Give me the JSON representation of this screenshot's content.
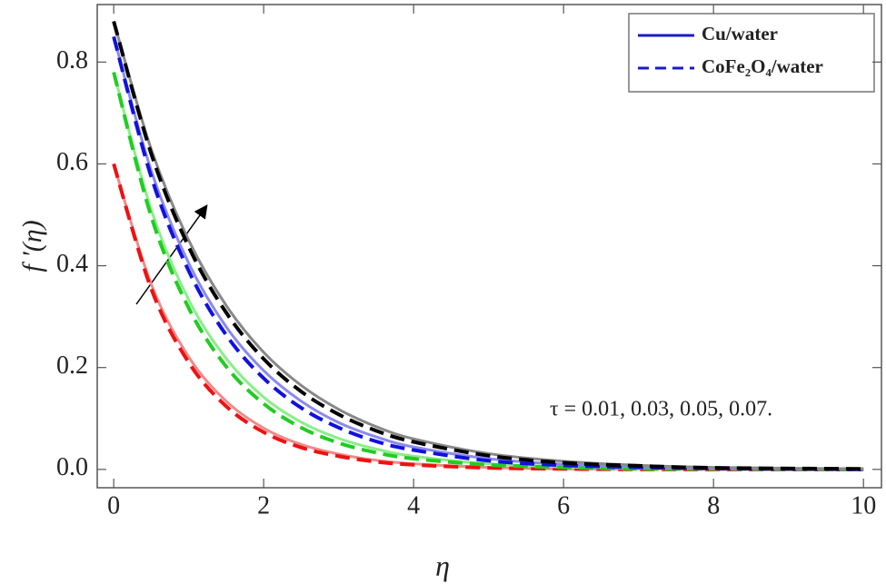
{
  "chart_data": {
    "type": "line",
    "x_label": "η",
    "y_label": "f ′(η)",
    "annotation": "τ  = 0.01, 0.03, 0.05, 0.07.",
    "x": [
      0,
      0.5,
      1,
      1.5,
      2,
      2.5,
      3,
      3.5,
      4,
      5,
      6,
      7,
      8,
      10
    ],
    "series": [
      {
        "name": "Cu/water",
        "color": "#f08a8a",
        "dashed": false,
        "values": [
          0.6,
          0.364,
          0.221,
          0.134,
          0.081,
          0.049,
          0.03,
          0.018,
          0.011,
          0.004,
          0.001,
          0.001,
          0.0,
          0.0
        ]
      },
      {
        "name": "CoFe₂O₄/water",
        "color": "#ee1111",
        "dashed": true,
        "values": [
          0.6,
          0.355,
          0.21,
          0.124,
          0.073,
          0.043,
          0.026,
          0.015,
          0.009,
          0.003,
          0.001,
          0.0,
          0.0,
          0.0
        ]
      },
      {
        "name": "Cu/water",
        "color": "#8aee8a",
        "dashed": false,
        "values": [
          0.78,
          0.51,
          0.333,
          0.218,
          0.142,
          0.093,
          0.061,
          0.04,
          0.026,
          0.011,
          0.005,
          0.002,
          0.001,
          0.0
        ]
      },
      {
        "name": "CoFe₂O₄/water",
        "color": "#22cc22",
        "dashed": true,
        "values": [
          0.78,
          0.497,
          0.317,
          0.202,
          0.129,
          0.082,
          0.052,
          0.033,
          0.021,
          0.009,
          0.004,
          0.001,
          0.001,
          0.0
        ]
      },
      {
        "name": "Cu/water",
        "color": "#8a8aee",
        "dashed": false,
        "values": [
          0.85,
          0.587,
          0.405,
          0.28,
          0.194,
          0.134,
          0.092,
          0.064,
          0.044,
          0.021,
          0.01,
          0.005,
          0.002,
          0.001
        ]
      },
      {
        "name": "CoFe₂O₄/water",
        "color": "#1111dd",
        "dashed": true,
        "values": [
          0.85,
          0.575,
          0.39,
          0.264,
          0.179,
          0.121,
          0.082,
          0.055,
          0.038,
          0.017,
          0.008,
          0.004,
          0.002,
          0.0
        ]
      },
      {
        "name": "Cu/water",
        "color": "#888888",
        "dashed": false,
        "values": [
          0.88,
          0.629,
          0.45,
          0.322,
          0.23,
          0.165,
          0.118,
          0.084,
          0.06,
          0.031,
          0.016,
          0.008,
          0.004,
          0.001
        ]
      },
      {
        "name": "CoFe₂O₄/water",
        "color": "#000000",
        "dashed": true,
        "values": [
          0.88,
          0.62,
          0.437,
          0.308,
          0.217,
          0.153,
          0.108,
          0.076,
          0.054,
          0.027,
          0.013,
          0.007,
          0.003,
          0.001
        ]
      }
    ],
    "legend": "upper right",
    "legend_color": "#1a1acc",
    "xlim": [
      -0.22,
      10.24
    ],
    "ylim": [
      -0.036,
      0.913
    ],
    "xticks": [
      0,
      2,
      4,
      6,
      8,
      10
    ],
    "yticks": [
      {
        "value": 0,
        "label": "0.0"
      },
      {
        "value": 0.2,
        "label": "0.2"
      },
      {
        "value": 0.4,
        "label": "0.4"
      },
      {
        "value": 0.6,
        "label": "0.6"
      },
      {
        "value": 0.8,
        "label": "0.8"
      }
    ]
  }
}
